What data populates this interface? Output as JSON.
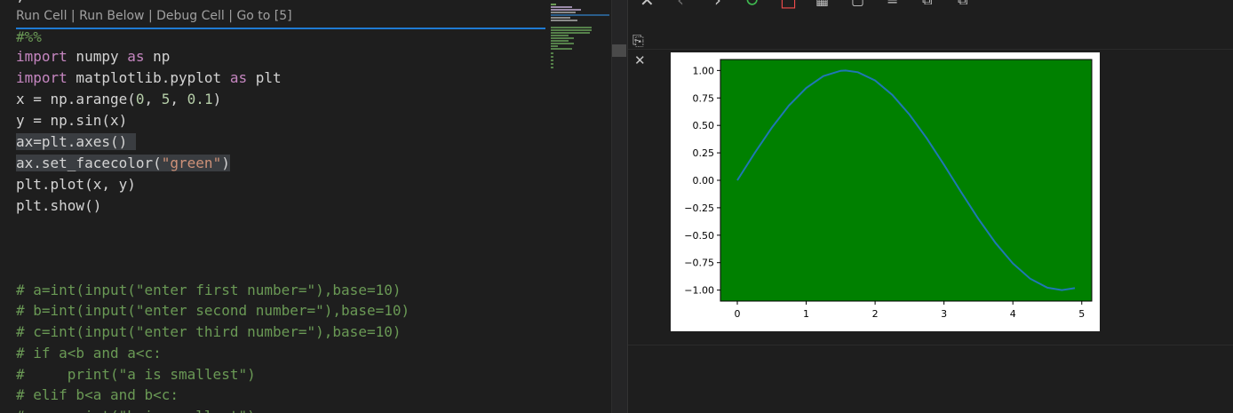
{
  "codelens": [
    "Run Cell",
    "Run Below",
    "Debug Cell",
    "Go to [5]"
  ],
  "codelens_sep": " | ",
  "code": {
    "l0": "#%%",
    "l1_kw": "import",
    "l1_rest": " numpy ",
    "l1_kw2": "as",
    "l1_tail": " np",
    "l2_kw": "import",
    "l2_rest": " matplotlib.pyplot ",
    "l2_kw2": "as",
    "l2_tail": " plt",
    "l3_a": "x = np.arange(",
    "l3_n1": "0",
    "l3_c1": ", ",
    "l3_n2": "5",
    "l3_c2": ", ",
    "l3_n3": "0.1",
    "l3_b": ")",
    "l4": "y = np.sin(x)",
    "l5": "ax=plt.axes() ",
    "l6_a": "ax.set_facecolor(",
    "l6_s": "\"green\"",
    "l6_b": ")",
    "l7": "plt.plot(x, y)",
    "l8": "plt.show()",
    "c1": "# a=int(input(\"enter first number=\"),base=10)",
    "c2": "# b=int(input(\"enter second number=\"),base=10)",
    "c3": "# c=int(input(\"enter third number=\"),base=10)",
    "c4": "# if a<b and a<c:",
    "c5": "#     print(\"a is smallest\")",
    "c6": "# elif b<a and b<c:",
    "c7": "#     print(\"b is smallest\")"
  },
  "toolbar_icons": [
    "close-icon",
    "back-icon",
    "forward-icon",
    "refresh-icon",
    "stop-icon",
    "grid-icon",
    "square-icon",
    "list-icon",
    "copy-icon",
    "copy-alt-icon"
  ],
  "colors": {
    "keyword": "#c586c0",
    "number": "#b5cea8",
    "string": "#ce9178",
    "comment": "#6a9955",
    "cell_divider": "#1f7ad2",
    "plot_bg": "#008000",
    "line": "#1f77b4"
  },
  "chart_data": {
    "type": "line",
    "x": [
      0,
      0.25,
      0.5,
      0.75,
      1.0,
      1.25,
      1.5,
      1.57,
      1.75,
      2.0,
      2.25,
      2.5,
      2.75,
      3.0,
      3.25,
      3.5,
      3.75,
      4.0,
      4.25,
      4.5,
      4.71,
      4.9
    ],
    "y": [
      0,
      0.247,
      0.479,
      0.682,
      0.841,
      0.949,
      0.997,
      1.0,
      0.984,
      0.909,
      0.778,
      0.598,
      0.382,
      0.141,
      -0.108,
      -0.351,
      -0.572,
      -0.757,
      -0.895,
      -0.978,
      -1.0,
      -0.982
    ],
    "xlim": [
      -0.245,
      5.145
    ],
    "ylim": [
      -1.1,
      1.1
    ],
    "xticks": [
      "0",
      "1",
      "2",
      "3",
      "4",
      "5"
    ],
    "xtick_values": [
      0,
      1,
      2,
      3,
      4,
      5
    ],
    "yticks": [
      "1.00",
      "0.75",
      "0.50",
      "0.25",
      "0.00",
      "−0.25",
      "−0.50",
      "−0.75",
      "−1.00"
    ],
    "ytick_values": [
      1.0,
      0.75,
      0.5,
      0.25,
      0.0,
      -0.25,
      -0.5,
      -0.75,
      -1.0
    ],
    "facecolor": "#008000",
    "line_color": "#1f77b4",
    "title": "",
    "xlabel": "",
    "ylabel": ""
  }
}
